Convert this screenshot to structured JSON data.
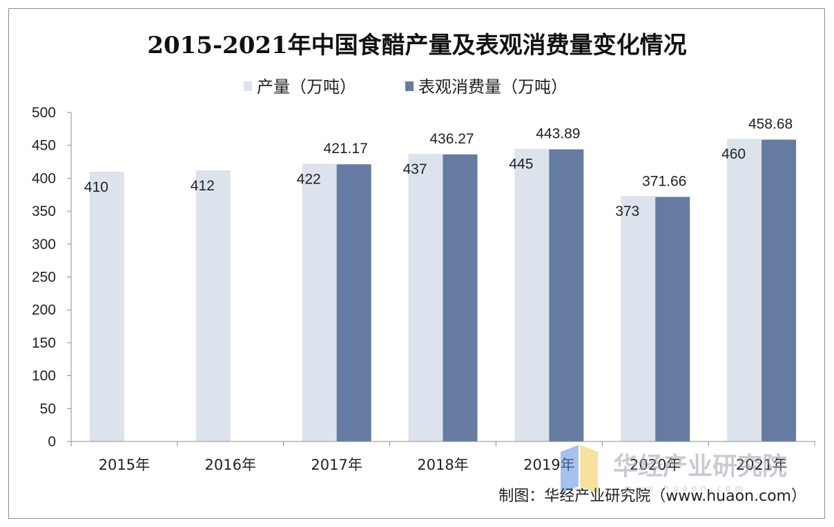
{
  "chart_data": {
    "type": "bar",
    "title": "2015-2021年中国食醋产量及表观消费量变化情况",
    "categories": [
      "2015年",
      "2016年",
      "2017年",
      "2018年",
      "2019年",
      "2020年",
      "2021年"
    ],
    "series": [
      {
        "name": "产量（万吨）",
        "color": "#dde3ec",
        "values": [
          410,
          412,
          422,
          437,
          445,
          373,
          460
        ],
        "labels": [
          "410",
          "412",
          "422",
          "437",
          "445",
          "373",
          "460"
        ]
      },
      {
        "name": "表观消费量（万吨）",
        "color": "#667ba1",
        "values": [
          null,
          null,
          421.17,
          436.27,
          443.89,
          371.66,
          458.68
        ],
        "labels": [
          "",
          "",
          "421.17",
          "436.27",
          "443.89",
          "371.66",
          "458.68"
        ]
      }
    ],
    "ylim": [
      0,
      500
    ],
    "yticks": [
      "0",
      "50",
      "100",
      "150",
      "200",
      "250",
      "300",
      "350",
      "400",
      "450",
      "500"
    ],
    "grid": false,
    "legend_position": "top-center",
    "xlabel": "",
    "ylabel": ""
  },
  "source": "制图：华经产业研究院（www.huaon.com）",
  "watermark": {
    "text": "华经产业研究院",
    "sub": "www.huaon.com",
    "logo_colors": [
      "#5b8fe0",
      "#f2c84b"
    ]
  }
}
